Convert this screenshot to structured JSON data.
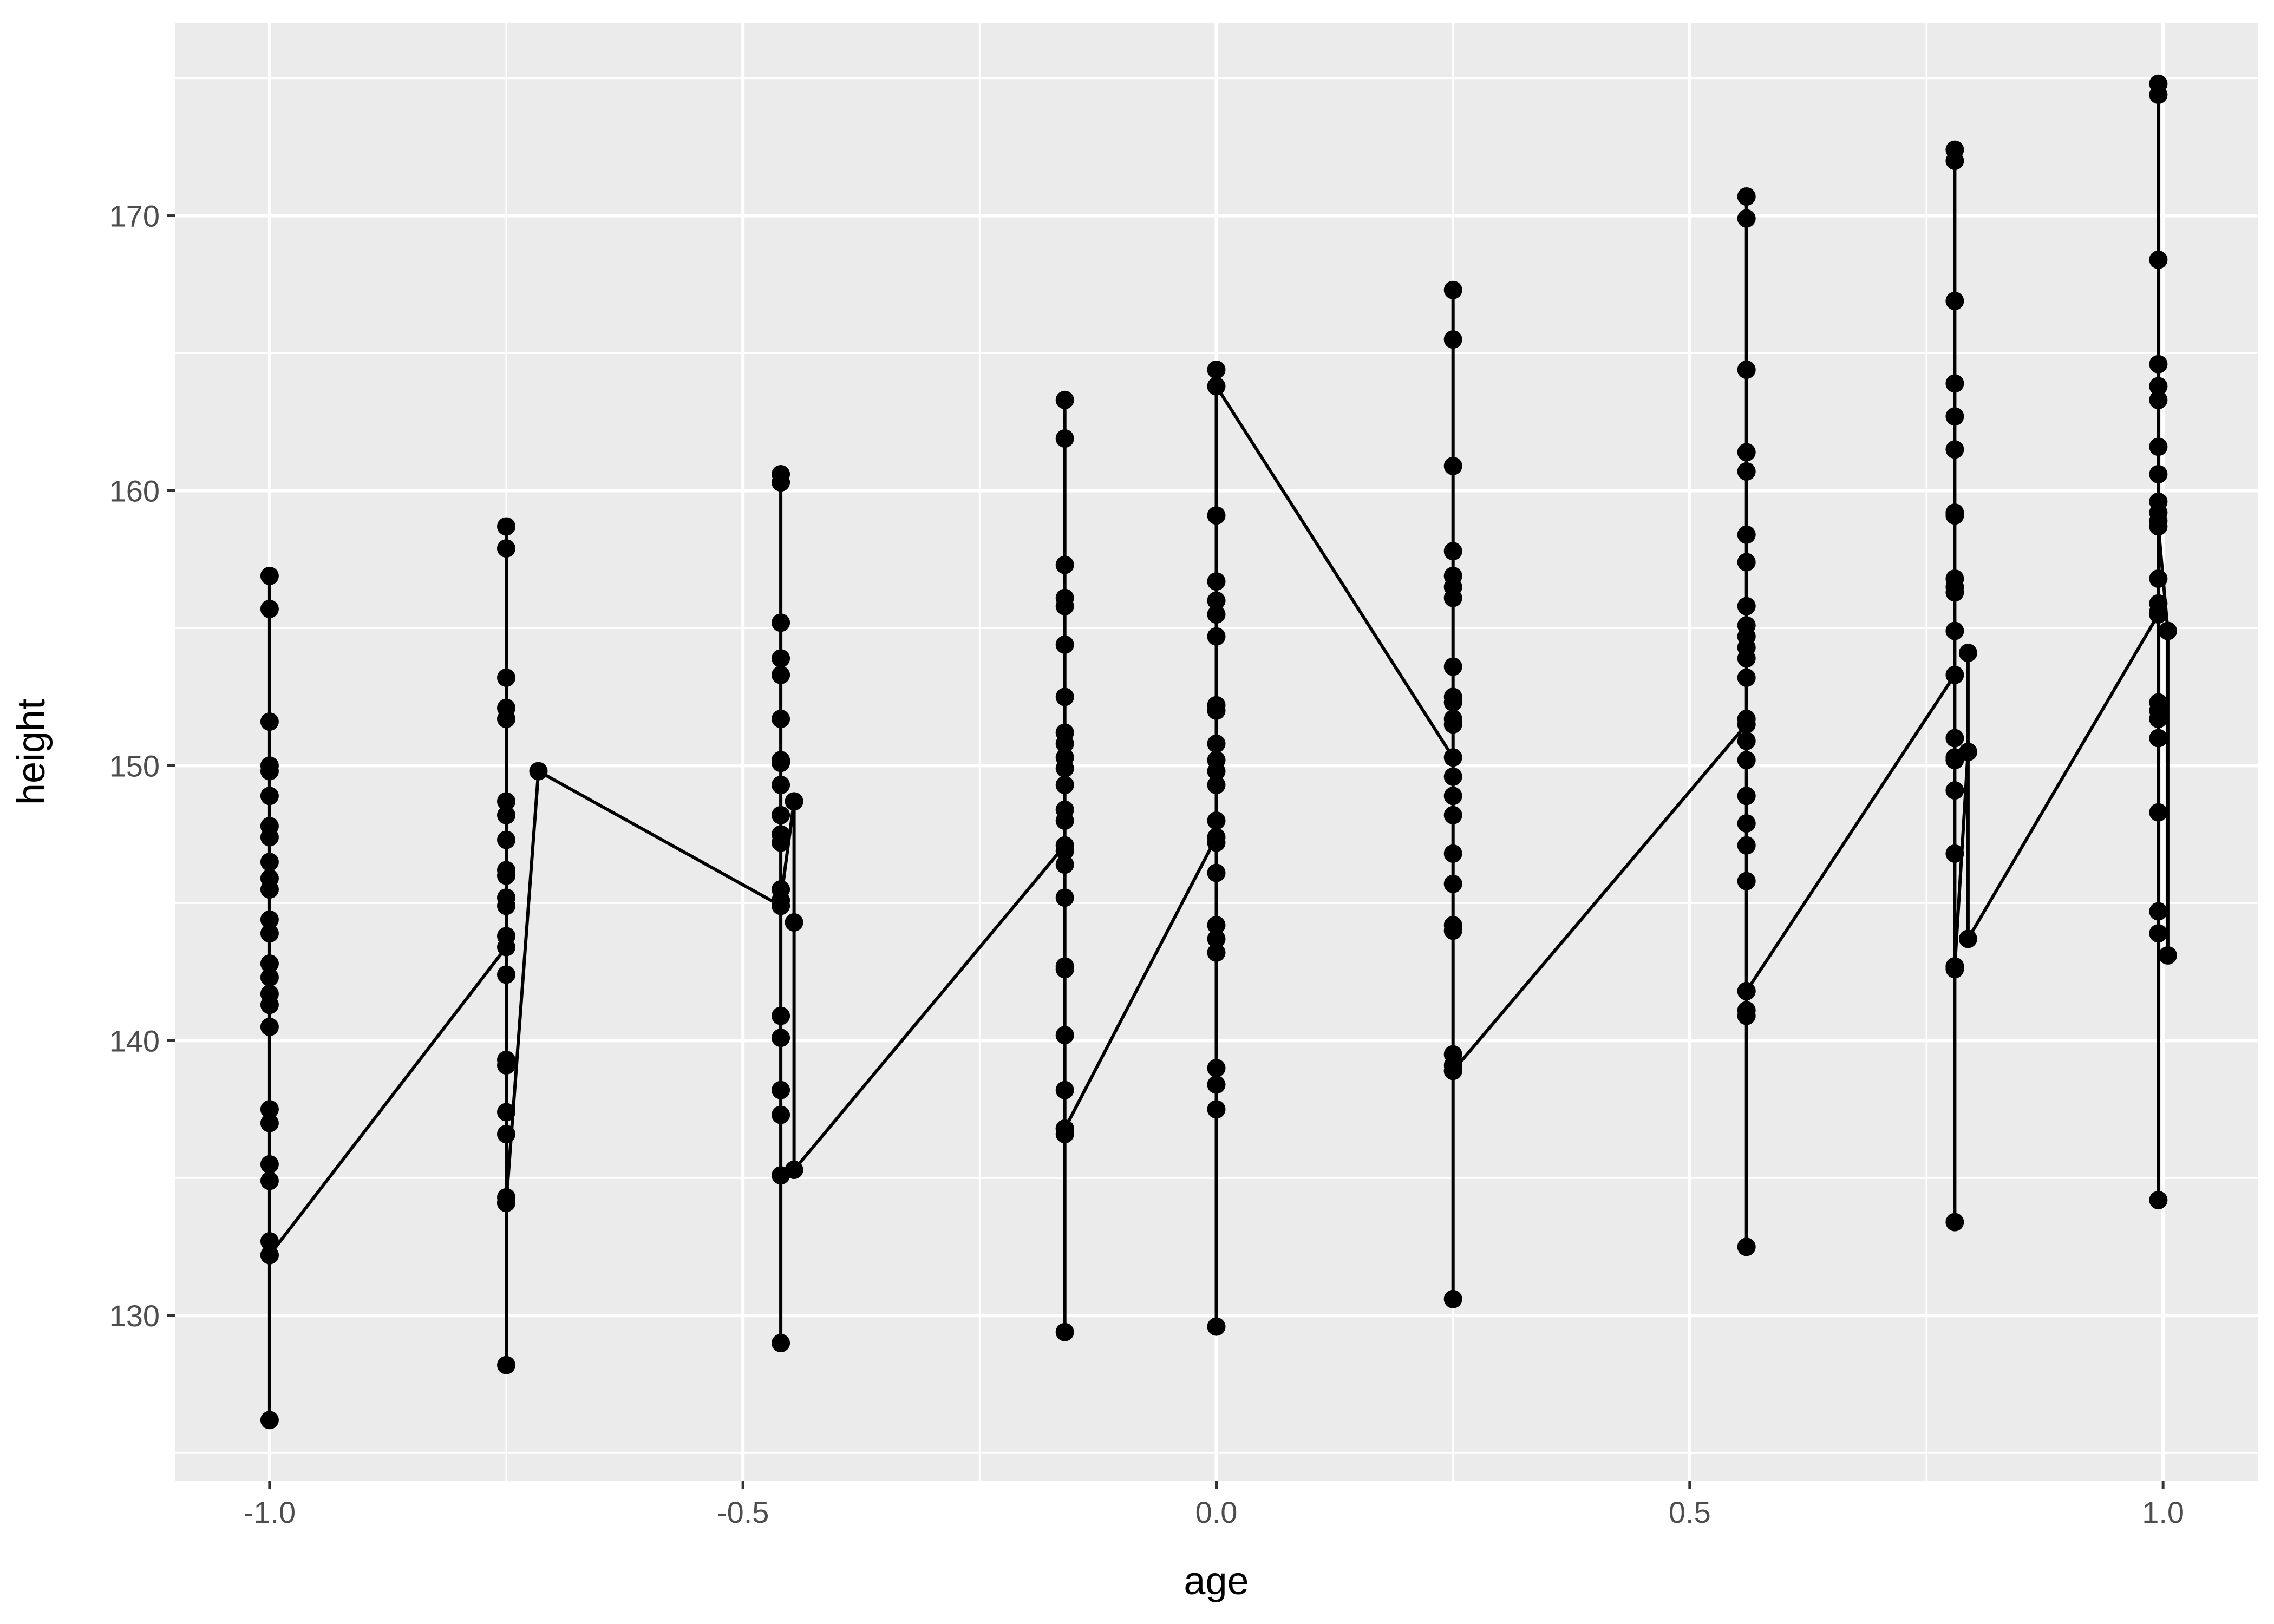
{
  "chart_data": {
    "type": "line",
    "title": "",
    "xlabel": "age",
    "ylabel": "height",
    "xlim": [
      -1.1,
      1.1
    ],
    "ylim": [
      124,
      177
    ],
    "x_ticks": [
      -1.0,
      -0.5,
      0.0,
      0.5,
      1.0
    ],
    "x_tick_labels": [
      "-1.0",
      "-0.5",
      "0.0",
      "0.5",
      "1.0"
    ],
    "y_ticks": [
      130,
      140,
      150,
      160,
      170
    ],
    "y_tick_labels": [
      "130",
      "140",
      "150",
      "160",
      "170"
    ],
    "grid": true,
    "legend": "none",
    "series": [
      {
        "points": [
          [
            -1.0,
            126.2
          ],
          [
            -1.0,
            132.2
          ],
          [
            -1.0,
            132.7
          ],
          [
            -1.0,
            134.9
          ],
          [
            -1.0,
            135.5
          ],
          [
            -1.0,
            137.0
          ],
          [
            -1.0,
            137.5
          ],
          [
            -1.0,
            140.5
          ],
          [
            -1.0,
            141.3
          ],
          [
            -1.0,
            141.7
          ],
          [
            -1.0,
            142.3
          ],
          [
            -1.0,
            142.8
          ],
          [
            -1.0,
            143.9
          ],
          [
            -1.0,
            144.4
          ],
          [
            -1.0,
            145.5
          ],
          [
            -1.0,
            145.9
          ],
          [
            -1.0,
            146.5
          ],
          [
            -1.0,
            147.4
          ],
          [
            -1.0,
            147.8
          ],
          [
            -1.0,
            148.9
          ],
          [
            -1.0,
            149.8
          ],
          [
            -1.0,
            150.0
          ],
          [
            -1.0,
            151.6
          ],
          [
            -1.0,
            155.7
          ],
          [
            -1.0,
            156.9
          ],
          [
            -1.0,
            132.2
          ],
          [
            -0.75,
            143.4
          ],
          [
            -0.75,
            128.2
          ],
          [
            -0.75,
            134.1
          ],
          [
            -0.75,
            134.3
          ],
          [
            -0.75,
            136.6
          ],
          [
            -0.75,
            137.4
          ],
          [
            -0.75,
            139.1
          ],
          [
            -0.75,
            139.3
          ],
          [
            -0.75,
            142.4
          ],
          [
            -0.75,
            143.8
          ],
          [
            -0.75,
            144.9
          ],
          [
            -0.75,
            145.2
          ],
          [
            -0.75,
            146.0
          ],
          [
            -0.75,
            146.2
          ],
          [
            -0.75,
            147.3
          ],
          [
            -0.75,
            148.2
          ],
          [
            -0.75,
            148.7
          ],
          [
            -0.75,
            151.7
          ],
          [
            -0.75,
            152.1
          ],
          [
            -0.75,
            153.2
          ],
          [
            -0.75,
            157.9
          ],
          [
            -0.75,
            158.7
          ],
          [
            -0.75,
            134.1
          ],
          [
            -0.716,
            149.8
          ],
          [
            -0.46,
            144.9
          ],
          [
            -0.46,
            129.0
          ],
          [
            -0.46,
            135.1
          ],
          [
            -0.46,
            137.3
          ],
          [
            -0.46,
            138.2
          ],
          [
            -0.46,
            140.1
          ],
          [
            -0.46,
            140.9
          ],
          [
            -0.46,
            145.1
          ],
          [
            -0.46,
            145.5
          ],
          [
            -0.46,
            147.2
          ],
          [
            -0.46,
            147.5
          ],
          [
            -0.46,
            148.2
          ],
          [
            -0.46,
            149.3
          ],
          [
            -0.46,
            150.1
          ],
          [
            -0.46,
            150.2
          ],
          [
            -0.46,
            151.7
          ],
          [
            -0.46,
            153.3
          ],
          [
            -0.46,
            153.9
          ],
          [
            -0.46,
            155.2
          ],
          [
            -0.46,
            160.3
          ],
          [
            -0.46,
            160.6
          ],
          [
            -0.46,
            145.1
          ],
          [
            -0.446,
            148.7
          ],
          [
            -0.446,
            144.3
          ],
          [
            -0.446,
            135.3
          ],
          [
            -0.16,
            147.1
          ],
          [
            -0.16,
            129.4
          ],
          [
            -0.16,
            136.6
          ],
          [
            -0.16,
            136.8
          ],
          [
            -0.16,
            138.2
          ],
          [
            -0.16,
            140.2
          ],
          [
            -0.16,
            142.6
          ],
          [
            -0.16,
            142.7
          ],
          [
            -0.16,
            145.2
          ],
          [
            -0.16,
            146.4
          ],
          [
            -0.16,
            146.9
          ],
          [
            -0.16,
            148.0
          ],
          [
            -0.16,
            148.4
          ],
          [
            -0.16,
            149.3
          ],
          [
            -0.16,
            149.9
          ],
          [
            -0.16,
            150.3
          ],
          [
            -0.16,
            150.8
          ],
          [
            -0.16,
            151.2
          ],
          [
            -0.16,
            152.5
          ],
          [
            -0.16,
            154.4
          ],
          [
            -0.16,
            155.8
          ],
          [
            -0.16,
            156.1
          ],
          [
            -0.16,
            157.3
          ],
          [
            -0.16,
            161.9
          ],
          [
            -0.16,
            163.3
          ],
          [
            -0.16,
            136.8
          ],
          [
            0.0,
            147.4
          ],
          [
            0.0,
            129.6
          ],
          [
            0.0,
            137.5
          ],
          [
            0.0,
            138.4
          ],
          [
            0.0,
            139.0
          ],
          [
            0.0,
            143.2
          ],
          [
            0.0,
            143.7
          ],
          [
            0.0,
            144.2
          ],
          [
            0.0,
            146.1
          ],
          [
            0.0,
            147.2
          ],
          [
            0.0,
            148.0
          ],
          [
            0.0,
            149.3
          ],
          [
            0.0,
            149.8
          ],
          [
            0.0,
            150.2
          ],
          [
            0.0,
            150.8
          ],
          [
            0.0,
            152.0
          ],
          [
            0.0,
            152.2
          ],
          [
            0.0,
            154.7
          ],
          [
            0.0,
            155.5
          ],
          [
            0.0,
            156.0
          ],
          [
            0.0,
            156.7
          ],
          [
            0.0,
            159.1
          ],
          [
            0.0,
            164.4
          ],
          [
            0.0,
            163.8
          ],
          [
            0.25,
            150.3
          ],
          [
            0.25,
            130.6
          ],
          [
            0.25,
            138.9
          ],
          [
            0.25,
            139.1
          ],
          [
            0.25,
            139.5
          ],
          [
            0.25,
            144.0
          ],
          [
            0.25,
            144.2
          ],
          [
            0.25,
            145.7
          ],
          [
            0.25,
            146.8
          ],
          [
            0.25,
            148.2
          ],
          [
            0.25,
            148.9
          ],
          [
            0.25,
            149.6
          ],
          [
            0.25,
            151.5
          ],
          [
            0.25,
            151.7
          ],
          [
            0.25,
            152.3
          ],
          [
            0.25,
            152.5
          ],
          [
            0.25,
            153.6
          ],
          [
            0.25,
            156.1
          ],
          [
            0.25,
            156.5
          ],
          [
            0.25,
            156.9
          ],
          [
            0.25,
            157.8
          ],
          [
            0.25,
            160.9
          ],
          [
            0.25,
            165.5
          ],
          [
            0.25,
            167.3
          ],
          [
            0.25,
            138.9
          ],
          [
            0.56,
            151.5
          ],
          [
            0.56,
            132.5
          ],
          [
            0.56,
            140.9
          ],
          [
            0.56,
            141.1
          ],
          [
            0.56,
            141.8
          ],
          [
            0.56,
            145.8
          ],
          [
            0.56,
            147.1
          ],
          [
            0.56,
            147.9
          ],
          [
            0.56,
            148.9
          ],
          [
            0.56,
            150.2
          ],
          [
            0.56,
            150.9
          ],
          [
            0.56,
            151.7
          ],
          [
            0.56,
            153.2
          ],
          [
            0.56,
            153.9
          ],
          [
            0.56,
            154.3
          ],
          [
            0.56,
            154.7
          ],
          [
            0.56,
            155.1
          ],
          [
            0.56,
            155.8
          ],
          [
            0.56,
            157.4
          ],
          [
            0.56,
            158.4
          ],
          [
            0.56,
            160.7
          ],
          [
            0.56,
            161.4
          ],
          [
            0.56,
            164.4
          ],
          [
            0.56,
            169.9
          ],
          [
            0.56,
            170.7
          ],
          [
            0.56,
            141.8
          ],
          [
            0.78,
            153.3
          ],
          [
            0.78,
            133.4
          ],
          [
            0.78,
            142.6
          ],
          [
            0.78,
            142.7
          ],
          [
            0.78,
            146.8
          ],
          [
            0.78,
            149.1
          ],
          [
            0.78,
            150.2
          ],
          [
            0.78,
            150.3
          ],
          [
            0.78,
            151.0
          ],
          [
            0.78,
            154.9
          ],
          [
            0.78,
            156.3
          ],
          [
            0.78,
            156.5
          ],
          [
            0.78,
            156.8
          ],
          [
            0.78,
            159.1
          ],
          [
            0.78,
            159.2
          ],
          [
            0.78,
            161.5
          ],
          [
            0.78,
            162.7
          ],
          [
            0.78,
            163.9
          ],
          [
            0.78,
            166.9
          ],
          [
            0.78,
            172.0
          ],
          [
            0.78,
            172.4
          ],
          [
            0.78,
            142.7
          ],
          [
            0.794,
            150.5
          ],
          [
            0.794,
            154.1
          ],
          [
            0.794,
            143.7
          ],
          [
            0.995,
            155.5
          ],
          [
            0.995,
            134.2
          ],
          [
            0.995,
            143.9
          ],
          [
            0.995,
            144.7
          ],
          [
            0.995,
            148.3
          ],
          [
            0.995,
            151.0
          ],
          [
            0.995,
            151.7
          ],
          [
            0.995,
            152.0
          ],
          [
            0.995,
            152.3
          ],
          [
            0.995,
            155.6
          ],
          [
            0.995,
            155.9
          ],
          [
            0.995,
            156.8
          ],
          [
            0.995,
            158.9
          ],
          [
            0.995,
            159.2
          ],
          [
            0.995,
            159.6
          ],
          [
            0.995,
            160.6
          ],
          [
            0.995,
            161.6
          ],
          [
            0.995,
            163.3
          ],
          [
            0.995,
            163.8
          ],
          [
            0.995,
            164.6
          ],
          [
            0.995,
            168.4
          ],
          [
            0.995,
            174.4
          ],
          [
            0.995,
            174.8
          ],
          [
            0.995,
            158.7
          ],
          [
            1.005,
            154.9
          ],
          [
            1.005,
            143.1
          ]
        ]
      }
    ]
  }
}
